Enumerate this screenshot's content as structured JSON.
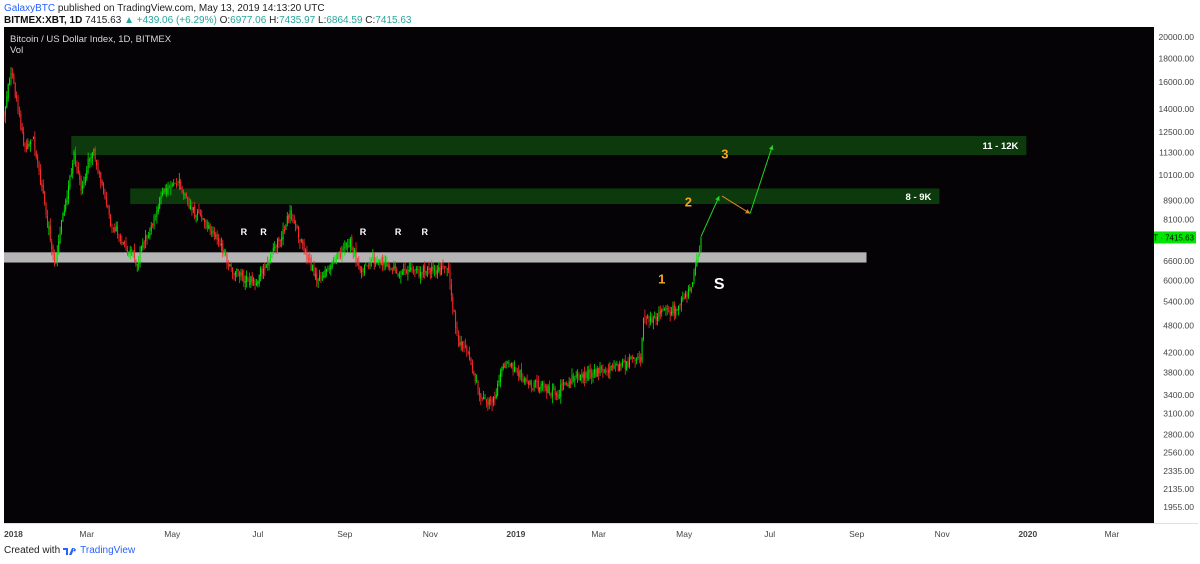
{
  "header": {
    "line1": {
      "author": "GalaxyBTC",
      "published": "published on TradingView.com, May 13, 2019 14:13:20 UTC"
    },
    "line2": {
      "symbol": "BITMEX:XBT, 1D",
      "last": "7415.63",
      "change": "▲ +439.06 (+6.29%)",
      "o_label": "O:",
      "o_value": "6977.06",
      "h_label": "H:",
      "h_value": "7435.97",
      "l_label": "L:",
      "l_value": "6864.59",
      "c_label": "C:",
      "c_value": "7415.63"
    }
  },
  "chart": {
    "title": "Bitcoin / US Dollar Index, 1D, BITMEX",
    "volume_label": "Vol",
    "price_tag": "XBT · 7415.63"
  },
  "footer": {
    "created_with": "Created with",
    "brand": "TradingView"
  },
  "colors": {
    "background": "#060306",
    "up": "#00e600",
    "down": "#ff2a2a",
    "zone": "#0d3a0d",
    "support_band": "#b5b5b5",
    "wave_labels": "#f5a623",
    "annotation_text": "#ffffff",
    "projection_up": "#22d822",
    "projection_down": "#e08a20"
  },
  "chart_data": {
    "type": "candlestick",
    "title": "Bitcoin / US Dollar Index, 1D, BITMEX",
    "y_scale": "log",
    "ylim": [
      1850,
      20500
    ],
    "x_range": [
      "2018-01-01",
      "2020-03-31"
    ],
    "y_ticks": [
      "20000.00",
      "18000.00",
      "16000.00",
      "14000.00",
      "12500.00",
      "11300.00",
      "10100.00",
      "8900.00",
      "8100.00",
      "7400.00",
      "6600.00",
      "6000.00",
      "5400.00",
      "4800.00",
      "4200.00",
      "3800.00",
      "3400.00",
      "3100.00",
      "2800.00",
      "2560.00",
      "2335.00",
      "2135.00",
      "1955.00"
    ],
    "x_ticks": [
      {
        "label": "2018",
        "date": "2018-01-01"
      },
      {
        "label": "Mar",
        "date": "2018-03-01"
      },
      {
        "label": "May",
        "date": "2018-05-01"
      },
      {
        "label": "Jul",
        "date": "2018-07-01"
      },
      {
        "label": "Sep",
        "date": "2018-09-01"
      },
      {
        "label": "Nov",
        "date": "2018-11-01"
      },
      {
        "label": "2019",
        "date": "2019-01-01"
      },
      {
        "label": "Mar",
        "date": "2019-03-01"
      },
      {
        "label": "May",
        "date": "2019-05-01"
      },
      {
        "label": "Jul",
        "date": "2019-07-01"
      },
      {
        "label": "Sep",
        "date": "2019-09-01"
      },
      {
        "label": "Nov",
        "date": "2019-11-01"
      },
      {
        "label": "2020",
        "date": "2020-01-01"
      },
      {
        "label": "Mar",
        "date": "2020-03-01"
      }
    ],
    "price_anchors": [
      [
        "2018-01-01",
        13500
      ],
      [
        "2018-01-06",
        17000
      ],
      [
        "2018-01-16",
        11500
      ],
      [
        "2018-01-22",
        12000
      ],
      [
        "2018-02-06",
        6500
      ],
      [
        "2018-02-20",
        11200
      ],
      [
        "2018-02-25",
        9500
      ],
      [
        "2018-03-05",
        11500
      ],
      [
        "2018-03-18",
        8000
      ],
      [
        "2018-03-31",
        6900
      ],
      [
        "2018-04-06",
        6600
      ],
      [
        "2018-04-25",
        9300
      ],
      [
        "2018-05-05",
        9800
      ],
      [
        "2018-05-15",
        8500
      ],
      [
        "2018-05-31",
        7500
      ],
      [
        "2018-06-13",
        6300
      ],
      [
        "2018-06-28",
        5900
      ],
      [
        "2018-07-10",
        6700
      ],
      [
        "2018-07-24",
        8300
      ],
      [
        "2018-08-10",
        6200
      ],
      [
        "2018-08-14",
        6000
      ],
      [
        "2018-08-30",
        6900
      ],
      [
        "2018-09-05",
        7300
      ],
      [
        "2018-09-12",
        6300
      ],
      [
        "2018-09-21",
        6700
      ],
      [
        "2018-10-11",
        6250
      ],
      [
        "2018-11-14",
        6300
      ],
      [
        "2018-11-20",
        4500
      ],
      [
        "2018-11-28",
        4200
      ],
      [
        "2018-12-07",
        3400
      ],
      [
        "2018-12-15",
        3200
      ],
      [
        "2018-12-22",
        3900
      ],
      [
        "2018-12-25",
        4050
      ],
      [
        "2019-01-10",
        3600
      ],
      [
        "2019-01-31",
        3450
      ],
      [
        "2019-02-08",
        3650
      ],
      [
        "2019-02-24",
        3800
      ],
      [
        "2019-03-15",
        3900
      ],
      [
        "2019-03-31",
        4100
      ],
      [
        "2019-04-02",
        4900
      ],
      [
        "2019-04-15",
        5100
      ],
      [
        "2019-04-25",
        5200
      ],
      [
        "2019-05-05",
        5700
      ],
      [
        "2019-05-11",
        6800
      ],
      [
        "2019-05-13",
        7415
      ]
    ],
    "candle_seed": 20190513,
    "last": {
      "o": 6977.06,
      "h": 7435.97,
      "l": 6864.59,
      "c": 7415.63
    },
    "support_band": {
      "from": "2018-01-01",
      "to": "2019-09-08",
      "low": 6550,
      "high": 6890
    },
    "zones": [
      {
        "label": "8 - 9K",
        "from": "2018-04-01",
        "to": "2019-10-30",
        "low": 8750,
        "high": 9450
      },
      {
        "label": "11 - 12K",
        "from": "2018-02-18",
        "to": "2019-12-31",
        "low": 11150,
        "high": 12250
      }
    ],
    "r_labels": [
      {
        "text": "R",
        "date": "2018-06-21",
        "price": 7500
      },
      {
        "text": "R",
        "date": "2018-07-05",
        "price": 7500
      },
      {
        "text": "R",
        "date": "2018-09-14",
        "price": 7500
      },
      {
        "text": "R",
        "date": "2018-10-09",
        "price": 7500
      },
      {
        "text": "R",
        "date": "2018-10-28",
        "price": 7500
      }
    ],
    "wave_labels": [
      {
        "text": "1",
        "date": "2019-04-15",
        "price": 5900
      },
      {
        "text": "2",
        "date": "2019-05-04",
        "price": 8650
      },
      {
        "text": "3",
        "date": "2019-05-30",
        "price": 10950
      }
    ],
    "s_label": {
      "text": "S",
      "date": "2019-05-26",
      "price": 5750
    },
    "projection": [
      {
        "from": [
          "2019-05-13",
          7450
        ],
        "to": [
          "2019-05-26",
          9100
        ],
        "dir": "up"
      },
      {
        "from": [
          "2019-05-28",
          9100
        ],
        "to": [
          "2019-06-17",
          8350
        ],
        "dir": "down"
      },
      {
        "from": [
          "2019-06-17",
          8350
        ],
        "to": [
          "2019-07-03",
          11700
        ],
        "dir": "up"
      }
    ]
  }
}
